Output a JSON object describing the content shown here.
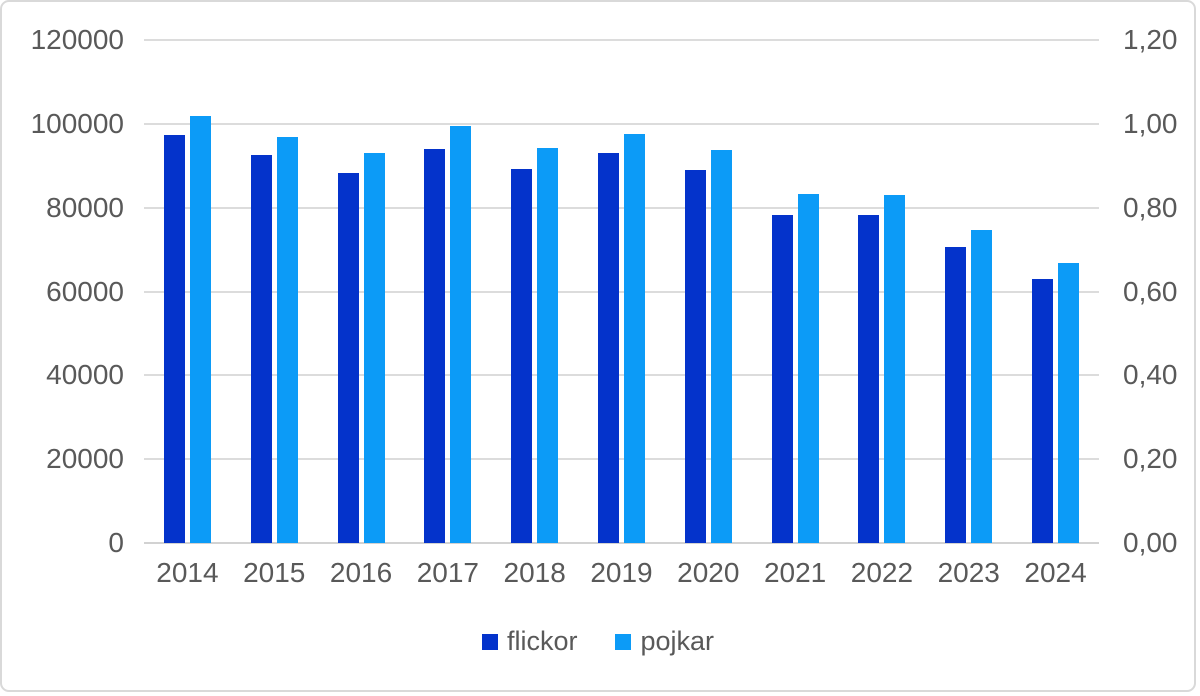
{
  "chart_data": {
    "type": "bar",
    "title": "",
    "categories": [
      "2014",
      "2015",
      "2016",
      "2017",
      "2018",
      "2019",
      "2020",
      "2021",
      "2022",
      "2023",
      "2024"
    ],
    "series": [
      {
        "name": "flickor",
        "color": "#0433cb",
        "values": [
          97400,
          92600,
          88300,
          94000,
          89200,
          93000,
          89000,
          78300,
          78200,
          70700,
          63100
        ]
      },
      {
        "name": "pojkar",
        "color": "#0c9bf7",
        "values": [
          101800,
          96900,
          93000,
          99400,
          94300,
          97500,
          93800,
          83200,
          83000,
          74600,
          66900
        ]
      }
    ],
    "left_axis": {
      "min": 0,
      "max": 120000,
      "tick_labels": [
        "120000",
        "100000",
        "80000",
        "60000",
        "40000",
        "20000",
        "0"
      ]
    },
    "right_axis": {
      "min": 0,
      "max": 1.2,
      "tick_labels": [
        "1,20",
        "1,00",
        "0,80",
        "0,60",
        "0,40",
        "0,20",
        "0,00"
      ]
    },
    "grid": true,
    "legend_position": "bottom"
  },
  "legend": {
    "item1": "flickor",
    "item2": "pojkar"
  },
  "colors": {
    "axis_text": "#595959",
    "gridline": "#dcdcdc",
    "axis_line": "#d2d2d2",
    "frame_border": "#d9d9d9",
    "background": "#ffffff",
    "series_flickor": "#0433cb",
    "series_pojkar": "#0c9bf7"
  }
}
